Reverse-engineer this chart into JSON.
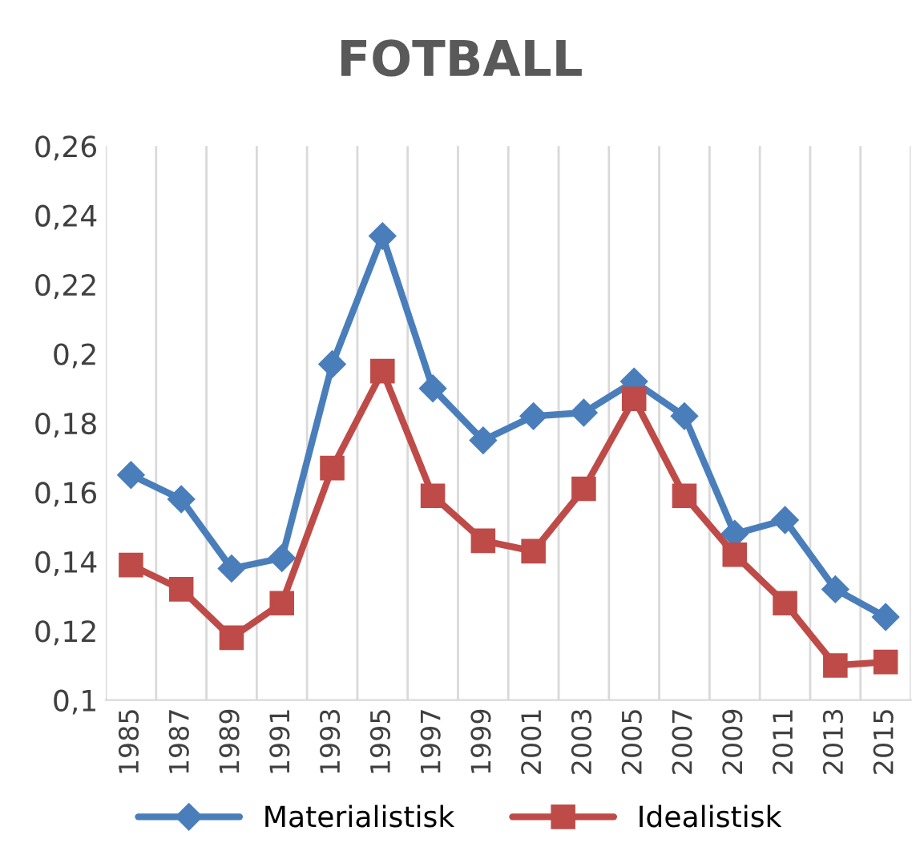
{
  "chart_data": {
    "type": "line",
    "title": "FOTBALL",
    "categories": [
      "1985",
      "1987",
      "1989",
      "1991",
      "1993",
      "1995",
      "1997",
      "1999",
      "2001",
      "2003",
      "2005",
      "2007",
      "2009",
      "2011",
      "2013",
      "2015"
    ],
    "series": [
      {
        "name": "Materialistisk",
        "color": "#4a7ebb",
        "marker": "diamond",
        "values": [
          0.165,
          0.158,
          0.138,
          0.141,
          0.197,
          0.234,
          0.19,
          0.175,
          0.182,
          0.183,
          0.192,
          0.182,
          0.148,
          0.152,
          0.132,
          0.124
        ]
      },
      {
        "name": "Idealistisk",
        "color": "#be4b48",
        "marker": "square",
        "values": [
          0.139,
          0.132,
          0.118,
          0.128,
          0.167,
          0.195,
          0.159,
          0.146,
          0.143,
          0.161,
          0.187,
          0.159,
          0.142,
          0.128,
          0.11,
          0.111
        ]
      }
    ],
    "ylim": [
      0.1,
      0.26
    ],
    "yticks": [
      {
        "value": 0.1,
        "label": "0,1"
      },
      {
        "value": 0.12,
        "label": "0,12"
      },
      {
        "value": 0.14,
        "label": "0,14"
      },
      {
        "value": 0.16,
        "label": "0,16"
      },
      {
        "value": 0.18,
        "label": "0,18"
      },
      {
        "value": 0.2,
        "label": "0,2"
      },
      {
        "value": 0.22,
        "label": "0,22"
      },
      {
        "value": 0.24,
        "label": "0,24"
      },
      {
        "value": 0.26,
        "label": "0,26"
      }
    ],
    "grid": "x",
    "legend": "bottom",
    "line_style": "solid"
  }
}
